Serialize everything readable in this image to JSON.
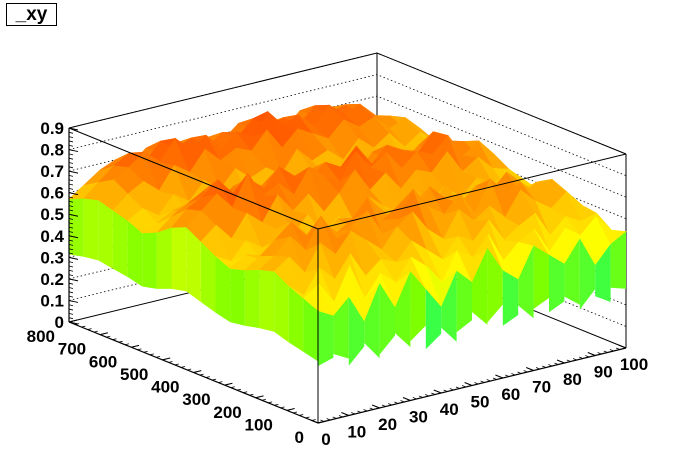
{
  "title": "_xy",
  "chart_data": {
    "type": "surface",
    "title": "_xy",
    "x_axis": {
      "min": 0,
      "max": 100,
      "ticks": [
        0,
        10,
        20,
        30,
        40,
        50,
        60,
        70,
        80,
        90,
        100
      ]
    },
    "y_axis": {
      "min": 0,
      "max": 800,
      "ticks": [
        0,
        100,
        200,
        300,
        400,
        500,
        600,
        700,
        800
      ]
    },
    "z_axis": {
      "min": 0,
      "max": 0.9,
      "ticks": [
        0,
        0.1,
        0.2,
        0.3,
        0.4,
        0.5,
        0.6,
        0.7,
        0.8,
        0.9
      ]
    },
    "grid": true,
    "colormap": [
      "#0010ff",
      "#00c8ff",
      "#00ff80",
      "#7fff00",
      "#ffff00",
      "#ffb000",
      "#ff5a00",
      "#e00000"
    ],
    "z_rows": [
      [
        0.52,
        0.48,
        0.55,
        0.42,
        0.58,
        0.45,
        0.6,
        0.5,
        0.4,
        0.55,
        0.48,
        0.62,
        0.5,
        0.44,
        0.58,
        0.52,
        0.46,
        0.56,
        0.42,
        0.5,
        0.54
      ],
      [
        0.55,
        0.6,
        0.5,
        0.65,
        0.48,
        0.58,
        0.52,
        0.62,
        0.56,
        0.47,
        0.6,
        0.55,
        0.64,
        0.5,
        0.57,
        0.61,
        0.49,
        0.58,
        0.53,
        0.6,
        0.52
      ],
      [
        0.58,
        0.52,
        0.63,
        0.56,
        0.66,
        0.54,
        0.6,
        0.57,
        0.65,
        0.59,
        0.53,
        0.62,
        0.58,
        0.66,
        0.55,
        0.6,
        0.64,
        0.52,
        0.59,
        0.55,
        0.57
      ],
      [
        0.62,
        0.67,
        0.58,
        0.7,
        0.63,
        0.72,
        0.66,
        0.6,
        0.69,
        0.74,
        0.64,
        0.58,
        0.7,
        0.63,
        0.68,
        0.61,
        0.72,
        0.65,
        0.6,
        0.66,
        0.58
      ],
      [
        0.6,
        0.65,
        0.72,
        0.64,
        0.78,
        0.66,
        0.7,
        0.75,
        0.63,
        0.68,
        0.8,
        0.7,
        0.65,
        0.73,
        0.62,
        0.76,
        0.68,
        0.71,
        0.64,
        0.69,
        0.6
      ],
      [
        0.57,
        0.62,
        0.68,
        0.74,
        0.66,
        0.71,
        0.64,
        0.69,
        0.77,
        0.65,
        0.7,
        0.62,
        0.75,
        0.68,
        0.64,
        0.7,
        0.66,
        0.73,
        0.61,
        0.65,
        0.62
      ],
      [
        0.55,
        0.6,
        0.56,
        0.63,
        0.7,
        0.62,
        0.58,
        0.66,
        0.6,
        0.72,
        0.64,
        0.58,
        0.65,
        0.61,
        0.69,
        0.58,
        0.64,
        0.6,
        0.67,
        0.59,
        0.57
      ],
      [
        0.58,
        0.54,
        0.62,
        0.57,
        0.64,
        0.59,
        0.67,
        0.56,
        0.63,
        0.59,
        0.68,
        0.62,
        0.57,
        0.66,
        0.6,
        0.63,
        0.58,
        0.65,
        0.61,
        0.56,
        0.59
      ],
      [
        0.62,
        0.68,
        0.6,
        0.7,
        0.64,
        0.75,
        0.66,
        0.72,
        0.62,
        0.69,
        0.78,
        0.67,
        0.73,
        0.64,
        0.71,
        0.68,
        0.76,
        0.65,
        0.7,
        0.63,
        0.61
      ],
      [
        0.66,
        0.72,
        0.78,
        0.7,
        0.84,
        0.72,
        0.76,
        0.69,
        0.8,
        0.74,
        0.7,
        0.82,
        0.73,
        0.78,
        0.69,
        0.75,
        0.72,
        0.79,
        0.68,
        0.73,
        0.65
      ],
      [
        0.63,
        0.7,
        0.74,
        0.8,
        0.72,
        0.77,
        0.71,
        0.79,
        0.73,
        0.7,
        0.76,
        0.72,
        0.8,
        0.7,
        0.77,
        0.73,
        0.7,
        0.78,
        0.72,
        0.7,
        0.62
      ],
      [
        0.58,
        0.64,
        0.68,
        0.72,
        0.66,
        0.71,
        0.64,
        0.69,
        0.66,
        0.61,
        0.7,
        0.64,
        0.68,
        0.62,
        0.71,
        0.66,
        0.63,
        0.69,
        0.65,
        0.6,
        0.59
      ],
      [
        0.55,
        0.58,
        0.62,
        0.6,
        0.64,
        0.58,
        0.66,
        0.6,
        0.57,
        0.63,
        0.59,
        0.66,
        0.61,
        0.58,
        0.64,
        0.6,
        0.63,
        0.57,
        0.62,
        0.58,
        0.56
      ],
      [
        0.58,
        0.62,
        0.57,
        0.65,
        0.6,
        0.68,
        0.62,
        0.7,
        0.64,
        0.67,
        0.62,
        0.72,
        0.65,
        0.68,
        0.62,
        0.7,
        0.64,
        0.69,
        0.61,
        0.66,
        0.6
      ],
      [
        0.6,
        0.66,
        0.7,
        0.64,
        0.74,
        0.69,
        0.78,
        0.71,
        0.75,
        0.72,
        0.8,
        0.7,
        0.77,
        0.73,
        0.69,
        0.76,
        0.71,
        0.74,
        0.67,
        0.7,
        0.63
      ],
      [
        0.62,
        0.7,
        0.74,
        0.79,
        0.73,
        0.82,
        0.75,
        0.8,
        0.72,
        0.78,
        0.74,
        0.84,
        0.76,
        0.79,
        0.72,
        0.8,
        0.74,
        0.77,
        0.7,
        0.68,
        0.6
      ],
      [
        0.6,
        0.66,
        0.72,
        0.76,
        0.7,
        0.78,
        0.73,
        0.76,
        0.7,
        0.75,
        0.71,
        0.78,
        0.73,
        0.75,
        0.7,
        0.77,
        0.72,
        0.74,
        0.68,
        0.64,
        0.58
      ],
      [
        0.57,
        0.62,
        0.67,
        0.7,
        0.66,
        0.72,
        0.68,
        0.71,
        0.66,
        0.7,
        0.67,
        0.73,
        0.69,
        0.7,
        0.65,
        0.72,
        0.68,
        0.7,
        0.64,
        0.6,
        0.55
      ]
    ]
  }
}
